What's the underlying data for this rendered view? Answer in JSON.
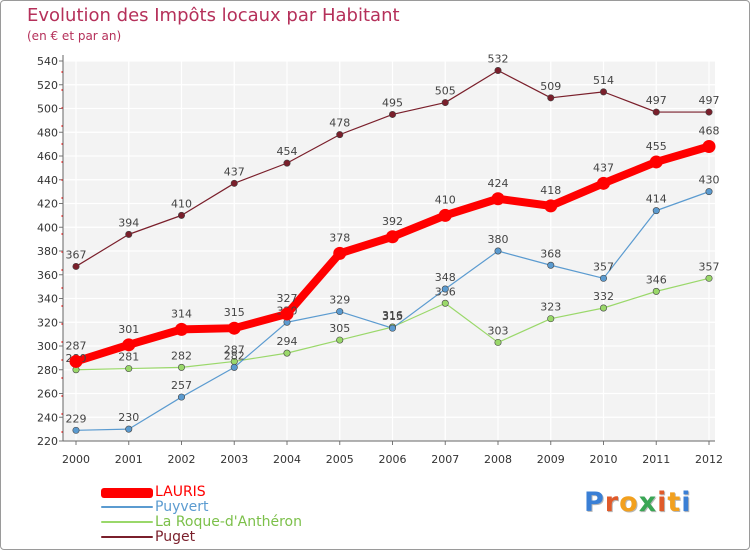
{
  "header": {
    "title": "Evolution des Impôts locaux par Habitant",
    "subtitle": "(en € et par an)"
  },
  "logo": {
    "text": "Proxiti",
    "letters": [
      "P",
      "r",
      "o",
      "x",
      "i",
      "t",
      "i"
    ],
    "colors": [
      "#3a7fd5",
      "#e05a2a",
      "#f2a01e",
      "#3aa655",
      "#e05a2a",
      "#f2a01e",
      "#3a7fd5"
    ]
  },
  "chart_data": {
    "type": "line",
    "title": "Evolution des Impôts locaux par Habitant",
    "subtitle": "(en € et par an)",
    "xlabel": "",
    "ylabel": "",
    "x": [
      "2000",
      "2001",
      "2002",
      "2003",
      "2004",
      "2005",
      "2006",
      "2007",
      "2008",
      "2009",
      "2010",
      "2011",
      "2012"
    ],
    "ylim": [
      220,
      540
    ],
    "yticks": [
      220,
      240,
      260,
      280,
      300,
      320,
      340,
      360,
      380,
      400,
      420,
      440,
      460,
      480,
      500,
      520,
      540
    ],
    "grid": true,
    "legend_position": "bottom-left",
    "series": [
      {
        "name": "Puget",
        "color": "#7a1f2b",
        "values": [
          367,
          394,
          410,
          437,
          454,
          478,
          495,
          505,
          532,
          509,
          514,
          497,
          497
        ]
      },
      {
        "name": "La Roque-d'Anthéron",
        "color": "#9ad86a",
        "values": [
          280,
          281,
          282,
          287,
          294,
          305,
          316,
          336,
          303,
          323,
          332,
          346,
          357
        ]
      },
      {
        "name": "Puyvert",
        "color": "#5b9bd0",
        "values": [
          229,
          230,
          257,
          282,
          320,
          329,
          315,
          348,
          380,
          368,
          357,
          414,
          430
        ]
      },
      {
        "name": "LAURIS",
        "color": "#ff0000",
        "values": [
          287,
          301,
          314,
          315,
          327,
          378,
          392,
          410,
          424,
          418,
          437,
          455,
          468
        ]
      }
    ],
    "legend": [
      {
        "name": "LAURIS",
        "color": "#ff0000"
      },
      {
        "name": "Puyvert",
        "color": "#5b9bd0"
      },
      {
        "name": "La Roque-d'Anthéron",
        "color": "#9ad86a"
      },
      {
        "name": "Puget",
        "color": "#7a1f2b"
      }
    ]
  }
}
